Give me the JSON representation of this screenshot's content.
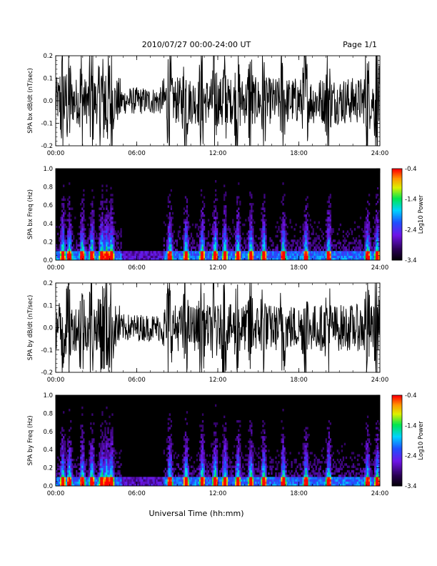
{
  "header": {
    "title": "2010/07/27  00:00-24:00 UT",
    "page": "Page 1/1"
  },
  "footer": {
    "xlabel": "Universal Time (hh:mm)"
  },
  "chart_data": [
    {
      "type": "line",
      "title": "",
      "ylabel": "SPA bx dB/dt (nT/sec)",
      "xlim": [
        "00:00",
        "24:00"
      ],
      "ylim": [
        -0.2,
        0.2
      ],
      "x_ticks": [
        "00:00",
        "06:00",
        "12:00",
        "18:00",
        "24:00"
      ],
      "y_ticks": [
        "-0.2",
        "-0.1",
        "0.0",
        "0.1",
        "0.2"
      ],
      "y_tick_values": [
        -0.2,
        -0.1,
        0.0,
        0.1,
        0.2
      ],
      "note_shape": "dense black oscillating signal, saturating ±0.2 in many intervals, quieter between ~06:00-08:00"
    },
    {
      "type": "heatmap",
      "title": "",
      "ylabel": "SPA bx Freq (Hz)",
      "xlim": [
        "00:00",
        "24:00"
      ],
      "ylim": [
        0.0,
        1.0
      ],
      "x_ticks": [
        "00:00",
        "06:00",
        "12:00",
        "18:00",
        "24:00"
      ],
      "y_ticks": [
        "0.0",
        "0.2",
        "0.4",
        "0.6",
        "0.8",
        "1.0"
      ],
      "y_tick_values": [
        0.0,
        0.2,
        0.4,
        0.6,
        0.8,
        1.0
      ],
      "colorbar": {
        "label": "Log10 Power",
        "range": [
          -3.4,
          -0.4
        ],
        "ticks": [
          "-0.4",
          "-1.4",
          "-2.4",
          "-3.4"
        ]
      }
    },
    {
      "type": "line",
      "title": "",
      "ylabel": "SPA by dB/dt (nT/sec)",
      "xlim": [
        "00:00",
        "24:00"
      ],
      "ylim": [
        -0.2,
        0.2
      ],
      "x_ticks": [
        "00:00",
        "06:00",
        "12:00",
        "18:00",
        "24:00"
      ],
      "y_ticks": [
        "-0.2",
        "-0.1",
        "0.0",
        "0.1",
        "0.2"
      ],
      "y_tick_values": [
        -0.2,
        -0.1,
        0.0,
        0.1,
        0.2
      ]
    },
    {
      "type": "heatmap",
      "title": "",
      "ylabel": "SPA by Freq (Hz)",
      "xlim": [
        "00:00",
        "24:00"
      ],
      "ylim": [
        0.0,
        1.0
      ],
      "x_ticks": [
        "00:00",
        "06:00",
        "12:00",
        "18:00",
        "24:00"
      ],
      "y_ticks": [
        "0.0",
        "0.2",
        "0.4",
        "0.6",
        "0.8",
        "1.0"
      ],
      "y_tick_values": [
        0.0,
        0.2,
        0.4,
        0.6,
        0.8,
        1.0
      ],
      "colorbar": {
        "label": "Log10 Power",
        "range": [
          -3.4,
          -0.4
        ],
        "ticks": [
          "-0.4",
          "-1.4",
          "-2.4",
          "-3.4"
        ]
      }
    }
  ]
}
